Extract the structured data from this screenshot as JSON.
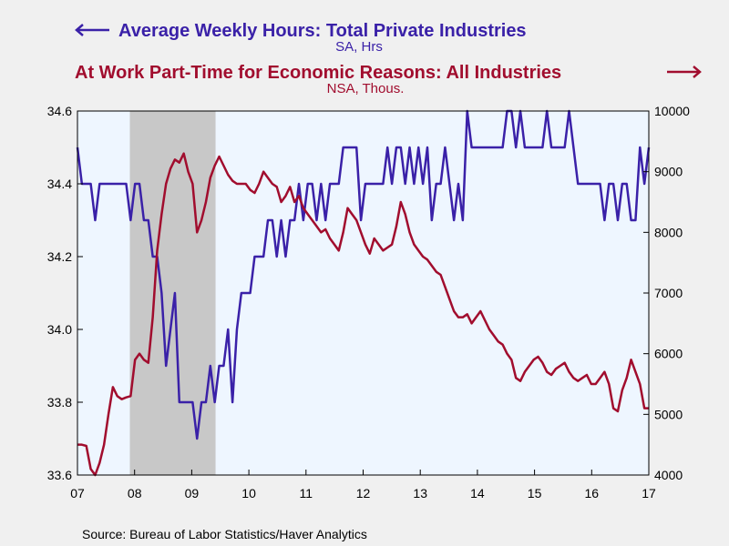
{
  "chart_data": {
    "type": "line",
    "source": "Source:  Bureau of Labor Statistics/Haver Analytics",
    "recession_shading": {
      "start": 2007.917,
      "end": 2009.417
    },
    "x_range": [
      2007.0,
      2017.0
    ],
    "x_ticks": [
      "07",
      "08",
      "09",
      "10",
      "11",
      "12",
      "13",
      "14",
      "15",
      "16",
      "17"
    ],
    "grid": false,
    "background_color": "#eef6ff",
    "recession_color": "#c8c8c8",
    "series": [
      {
        "key": "hours",
        "name": "Average Weekly Hours: Total Private Industries",
        "unit": "SA, Hrs",
        "axis": "left",
        "color": "#3a21a8",
        "legend_arrow": "left",
        "ylim": [
          33.6,
          34.6
        ],
        "y_ticks": [
          "33.6",
          "33.8",
          "34.0",
          "34.2",
          "34.4",
          "34.6"
        ],
        "values": [
          34.5,
          34.4,
          34.4,
          34.4,
          34.3,
          34.4,
          34.4,
          34.4,
          34.4,
          34.4,
          34.4,
          34.4,
          34.3,
          34.4,
          34.4,
          34.3,
          34.3,
          34.2,
          34.2,
          34.1,
          33.9,
          34.0,
          34.1,
          33.8,
          33.8,
          33.8,
          33.8,
          33.7,
          33.8,
          33.8,
          33.9,
          33.8,
          33.9,
          33.9,
          34.0,
          33.8,
          34.0,
          34.1,
          34.1,
          34.1,
          34.2,
          34.2,
          34.2,
          34.3,
          34.3,
          34.2,
          34.3,
          34.2,
          34.3,
          34.3,
          34.4,
          34.3,
          34.4,
          34.4,
          34.3,
          34.4,
          34.3,
          34.4,
          34.4,
          34.4,
          34.5,
          34.5,
          34.5,
          34.5,
          34.3,
          34.4,
          34.4,
          34.4,
          34.4,
          34.4,
          34.5,
          34.4,
          34.5,
          34.5,
          34.4,
          34.5,
          34.4,
          34.5,
          34.4,
          34.5,
          34.3,
          34.4,
          34.4,
          34.5,
          34.4,
          34.3,
          34.4,
          34.3,
          34.6,
          34.5,
          34.5,
          34.5,
          34.5,
          34.5,
          34.5,
          34.5,
          34.5,
          34.6,
          34.6,
          34.5,
          34.6,
          34.5,
          34.5,
          34.5,
          34.5,
          34.5,
          34.6,
          34.5,
          34.5,
          34.5,
          34.5,
          34.6,
          34.5,
          34.4,
          34.4,
          34.4,
          34.4,
          34.4,
          34.4,
          34.3,
          34.4,
          34.4,
          34.3,
          34.4,
          34.4,
          34.3,
          34.3,
          34.5,
          34.4,
          34.5
        ]
      },
      {
        "key": "parttime",
        "name": "At Work Part-Time for Economic Reasons: All Industries",
        "unit": "NSA, Thous.",
        "axis": "right",
        "color": "#a10d2e",
        "legend_arrow": "right",
        "ylim": [
          4000,
          10000
        ],
        "y_ticks": [
          "4000",
          "5000",
          "6000",
          "7000",
          "8000",
          "9000",
          "10000"
        ],
        "values": [
          4500,
          4500,
          4480,
          4100,
          4000,
          4200,
          4500,
          5000,
          5450,
          5300,
          5250,
          5280,
          5300,
          5900,
          6000,
          5900,
          5850,
          6600,
          7700,
          8300,
          8800,
          9050,
          9200,
          9150,
          9300,
          9000,
          8800,
          8000,
          8200,
          8500,
          8900,
          9100,
          9250,
          9100,
          8950,
          8850,
          8800,
          8800,
          8800,
          8700,
          8650,
          8800,
          9000,
          8900,
          8800,
          8750,
          8500,
          8600,
          8750,
          8500,
          8600,
          8400,
          8300,
          8200,
          8100,
          8000,
          8050,
          7900,
          7800,
          7700,
          8000,
          8400,
          8300,
          8200,
          8000,
          7800,
          7650,
          7900,
          7800,
          7700,
          7750,
          7800,
          8100,
          8500,
          8300,
          8000,
          7800,
          7700,
          7600,
          7550,
          7450,
          7350,
          7300,
          7100,
          6900,
          6700,
          6600,
          6600,
          6650,
          6500,
          6600,
          6700,
          6550,
          6400,
          6300,
          6200,
          6150,
          6000,
          5900,
          5600,
          5550,
          5700,
          5800,
          5900,
          5950,
          5850,
          5700,
          5650,
          5750,
          5800,
          5850,
          5700,
          5600,
          5550,
          5600,
          5650,
          5500,
          5500,
          5600,
          5700,
          5500,
          5100,
          5050,
          5400,
          5600,
          5900,
          5700,
          5500,
          5100,
          5100
        ]
      }
    ]
  }
}
